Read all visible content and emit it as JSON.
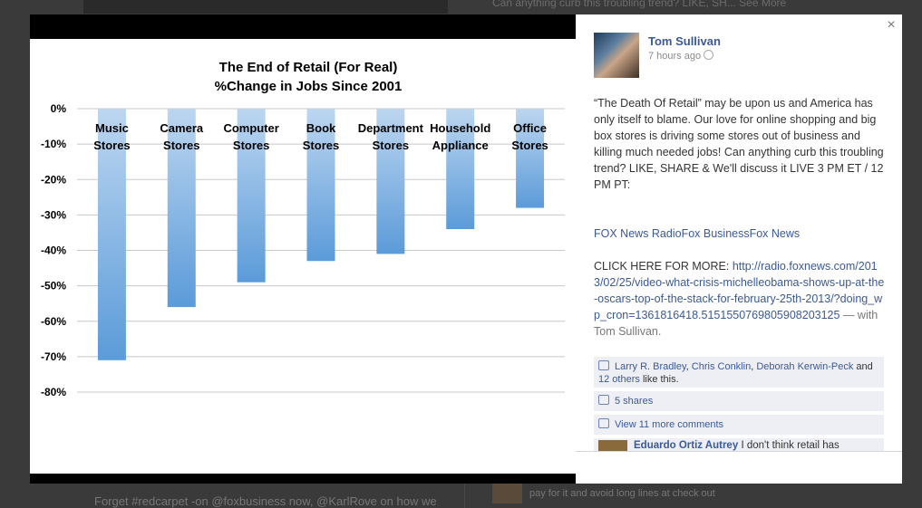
{
  "background": {
    "top_text": "Can anything curb this troubling trend? LIKE, SH... See More",
    "bottom_text": "Forget #redcarpet -on @foxbusiness now, @KarlRove on how we",
    "right_text_1": "pay for it and avoid long lines at check out"
  },
  "post": {
    "author": "Tom Sullivan",
    "time": "7 hours ago",
    "body": "“The Death Of Retail” may be upon us and America has only itself to blame. Our love for online shopping and big box stores is driving some stores out of business and killing much needed jobs! Can anything curb this troubling trend? LIKE, SHARE & We'll discuss it LIVE 3 PM ET / 12 PM PT:",
    "links": [
      "FOX News Radio",
      "Fox Business",
      "Fox News"
    ],
    "click_here": "CLICK HERE FOR MORE:",
    "url": "http://radio.foxnews.com/2013/02/25/video-what-crisis-michelleobama-shows-up-at-the-oscars-top-of-the-stack-for-february-25th-2013/?doing_wp_cron=1361816418.5151550769805908203125",
    "with_text": "— with Tom Sullivan.",
    "close_label": "×"
  },
  "likes": {
    "names": [
      "Larry R. Bradley",
      "Chris Conklin",
      "Deborah Kerwin-Peck"
    ],
    "and_text": "and",
    "others_link": "12 others",
    "suffix": "like this."
  },
  "shares": {
    "label": "5 shares"
  },
  "comments": {
    "view_more": "View 11 more comments",
    "first": {
      "author": "Eduardo Ortiz Autrey",
      "text": "I don't think retail has"
    }
  },
  "chart_data": {
    "type": "bar",
    "title": "The End of Retail (For Real)",
    "subtitle": "%Change in Jobs Since 2001",
    "categories": [
      [
        "Music",
        "Stores"
      ],
      [
        "Camera",
        "Stores"
      ],
      [
        "Computer",
        "Stores"
      ],
      [
        "Book",
        "Stores"
      ],
      [
        "Department",
        "Stores"
      ],
      [
        "Household",
        "Appliance"
      ],
      [
        "Office",
        "Stores"
      ]
    ],
    "values": [
      -71,
      -56,
      -49,
      -43,
      -41,
      -34,
      -28
    ],
    "yticks": [
      "0%",
      "-10%",
      "-20%",
      "-30%",
      "-40%",
      "-50%",
      "-60%",
      "-70%",
      "-80%"
    ],
    "ylim": [
      -80,
      0
    ],
    "grid": true,
    "colors": {
      "bar_top": "#bcd6f0",
      "bar_bottom": "#5b9bd9",
      "grid": "#c8c8c8",
      "text": "#000000"
    }
  }
}
